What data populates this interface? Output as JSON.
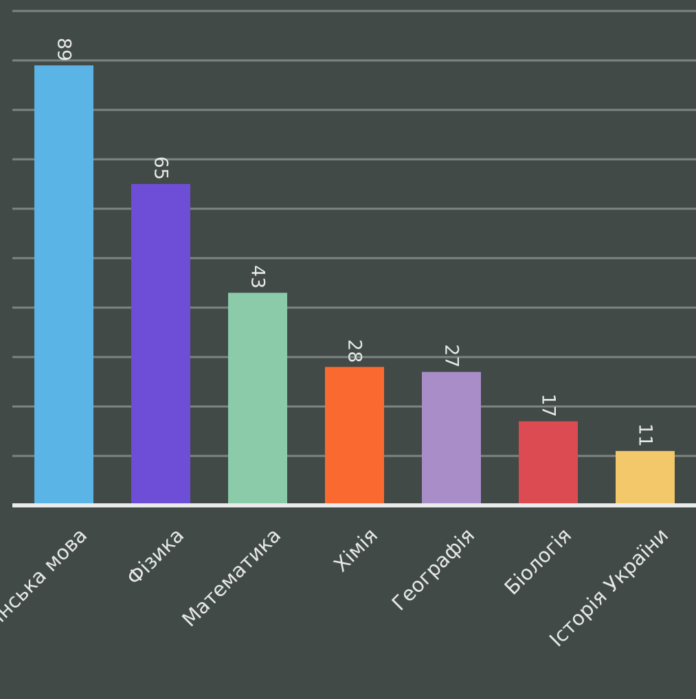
{
  "chart_data": {
    "type": "bar",
    "categories": [
      "Українська мова",
      "Фізика",
      "Математика",
      "Хімія",
      "Географія",
      "Біологія",
      "Історія України"
    ],
    "values": [
      89,
      65,
      43,
      28,
      27,
      17,
      11
    ],
    "ylim": [
      0,
      100
    ],
    "grid": true,
    "colors": [
      "#5ab4e5",
      "#6e4ed6",
      "#8ccba9",
      "#fa6a30",
      "#a98dc8",
      "#dd4b52",
      "#f3c86a"
    ],
    "axis_color": "#e9ecea",
    "grid_color": "#7d8582",
    "background": "#414a46"
  }
}
